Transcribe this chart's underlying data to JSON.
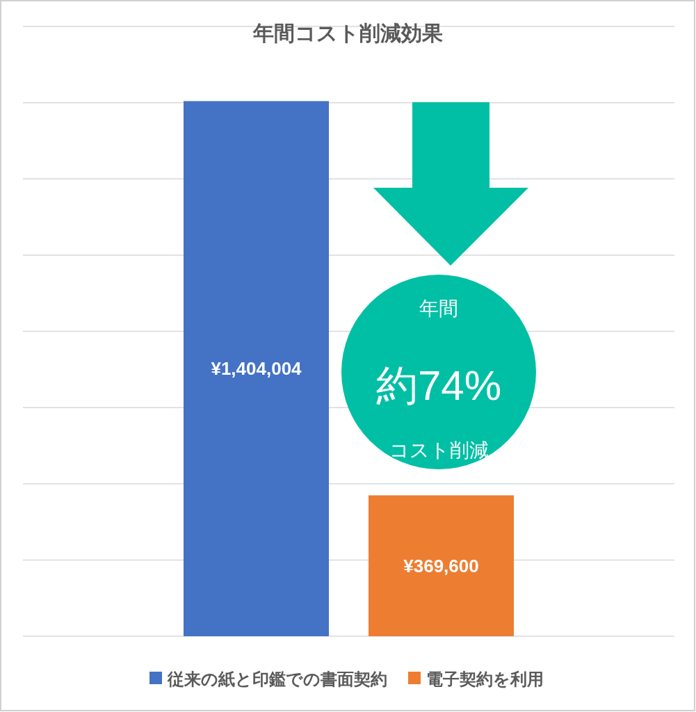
{
  "chart_data": {
    "type": "bar",
    "title": "年間コスト削減効果",
    "categories": [
      null
    ],
    "series": [
      {
        "name": "従来の紙と印鑑での書面契約",
        "color": "#4472c4",
        "values": [
          1404004
        ],
        "value_labels": [
          "¥1,404,004"
        ]
      },
      {
        "name": "電子契約を利用",
        "color": "#ed7d31",
        "values": [
          369600
        ],
        "value_labels": [
          "¥369,600"
        ]
      }
    ],
    "ylim": [
      0,
      1600000
    ],
    "yticks": [
      0,
      200000,
      400000,
      600000,
      800000,
      1000000,
      1200000,
      1400000,
      1600000
    ],
    "tick_labels": false,
    "grid": "y",
    "legend": "bottom",
    "annotations": [
      "年間",
      "約74%",
      "コスト削減"
    ]
  }
}
